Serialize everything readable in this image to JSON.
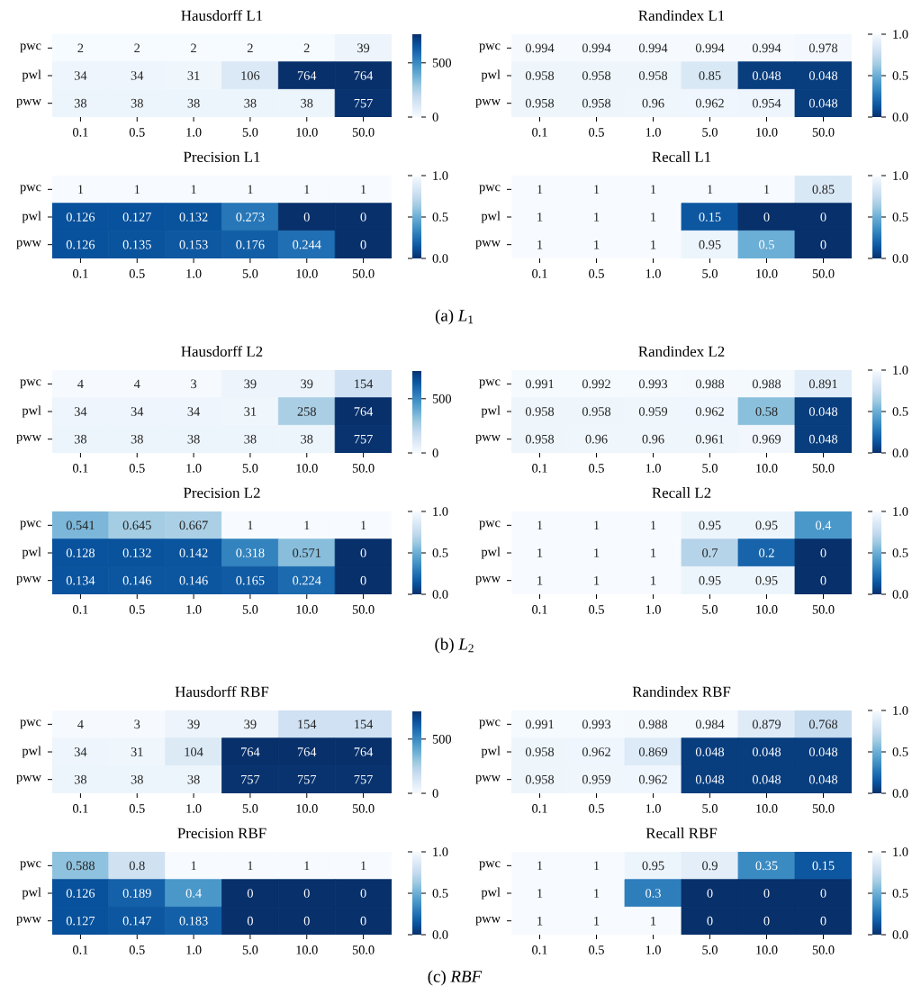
{
  "chart_data": [
    {
      "type": "heatmap",
      "title": "Hausdorff L1",
      "categories": [
        "0.1",
        "0.5",
        "1.0",
        "5.0",
        "10.0",
        "50.0"
      ],
      "y_categories": [
        "pwc",
        "pwl",
        "pww"
      ],
      "cells": [
        [
          2,
          2,
          2,
          2,
          2,
          39
        ],
        [
          34,
          34,
          31,
          106,
          764,
          764
        ],
        [
          38,
          38,
          38,
          38,
          38,
          757
        ]
      ],
      "cell_labels": [
        [
          "2",
          "2",
          "2",
          "2",
          "2",
          "39"
        ],
        [
          "34",
          "34",
          "31",
          "106",
          "764",
          "764"
        ],
        [
          "38",
          "38",
          "38",
          "38",
          "38",
          "757"
        ]
      ],
      "clim": [
        0,
        764
      ],
      "cticks": [
        0,
        500
      ]
    },
    {
      "type": "heatmap",
      "title": "Randindex L1",
      "categories": [
        "0.1",
        "0.5",
        "1.0",
        "5.0",
        "10.0",
        "50.0"
      ],
      "y_categories": [
        "pwc",
        "pwl",
        "pww"
      ],
      "cells": [
        [
          0.994,
          0.994,
          0.994,
          0.994,
          0.994,
          0.978
        ],
        [
          0.958,
          0.958,
          0.958,
          0.85,
          0.048,
          0.048
        ],
        [
          0.958,
          0.958,
          0.96,
          0.962,
          0.954,
          0.048
        ]
      ],
      "cell_labels": [
        [
          "0.994",
          "0.994",
          "0.994",
          "0.994",
          "0.994",
          "0.978"
        ],
        [
          "0.958",
          "0.958",
          "0.958",
          "0.85",
          "0.048",
          "0.048"
        ],
        [
          "0.958",
          "0.958",
          "0.96",
          "0.962",
          "0.954",
          "0.048"
        ]
      ],
      "clim": [
        1.0,
        0.0
      ],
      "cticks": [
        {
          "value": 0,
          "label": "0.0"
        },
        {
          "value": 0.5,
          "label": "0.5"
        },
        {
          "value": 1,
          "label": "1.0"
        }
      ]
    },
    {
      "type": "heatmap",
      "title": "Precision L1",
      "categories": [
        "0.1",
        "0.5",
        "1.0",
        "5.0",
        "10.0",
        "50.0"
      ],
      "y_categories": [
        "pwc",
        "pwl",
        "pww"
      ],
      "cells": [
        [
          1,
          1,
          1,
          1,
          1,
          1
        ],
        [
          0.126,
          0.127,
          0.132,
          0.273,
          0,
          0
        ],
        [
          0.126,
          0.135,
          0.153,
          0.176,
          0.244,
          0
        ]
      ],
      "cell_labels": [
        [
          "1",
          "1",
          "1",
          "1",
          "1",
          "1"
        ],
        [
          "0.126",
          "0.127",
          "0.132",
          "0.273",
          "0",
          "0"
        ],
        [
          "0.126",
          "0.135",
          "0.153",
          "0.176",
          "0.244",
          "0"
        ]
      ],
      "clim": [
        1.0,
        0.0
      ],
      "cticks": [
        {
          "value": 0,
          "label": "0.0"
        },
        {
          "value": 0.5,
          "label": "0.5"
        },
        {
          "value": 1,
          "label": "1.0"
        }
      ],
      "annotations": [
        "(a) *L*$_{1}$"
      ]
    },
    {
      "type": "heatmap",
      "title": "Recall L1",
      "categories": [
        "0.1",
        "0.5",
        "1.0",
        "5.0",
        "10.0",
        "50.0"
      ],
      "y_categories": [
        "pwc",
        "pwl",
        "pww"
      ],
      "cells": [
        [
          1,
          1,
          1,
          1,
          1,
          0.85
        ],
        [
          1,
          1,
          1,
          0.15,
          0,
          0
        ],
        [
          1,
          1,
          1,
          0.95,
          0.5,
          0
        ]
      ],
      "cell_labels": [
        [
          "1",
          "1",
          "1",
          "1",
          "1",
          "0.85"
        ],
        [
          "1",
          "1",
          "1",
          "0.15",
          "0",
          "0"
        ],
        [
          "1",
          "1",
          "1",
          "0.95",
          "0.5",
          "0"
        ]
      ],
      "clim": [
        1.0,
        0.0
      ],
      "cticks": [
        {
          "value": 0,
          "label": "0.0"
        },
        {
          "value": 0.5,
          "label": "0.5"
        },
        {
          "value": 1,
          "label": "1.0"
        }
      ]
    },
    {
      "type": "heatmap",
      "title": "Hausdorff L2",
      "categories": [
        "0.1",
        "0.5",
        "1.0",
        "5.0",
        "10.0",
        "50.0"
      ],
      "y_categories": [
        "pwc",
        "pwl",
        "pww"
      ],
      "cells": [
        [
          4,
          4,
          3,
          39,
          39,
          154
        ],
        [
          34,
          34,
          34,
          31,
          258,
          764
        ],
        [
          38,
          38,
          38,
          38,
          38,
          757
        ]
      ],
      "cell_labels": [
        [
          "4",
          "4",
          "3",
          "39",
          "39",
          "154"
        ],
        [
          "34",
          "34",
          "34",
          "31",
          "258",
          "764"
        ],
        [
          "38",
          "38",
          "38",
          "38",
          "38",
          "757"
        ]
      ],
      "clim": [
        0,
        764
      ],
      "cticks": [
        0,
        500
      ]
    },
    {
      "type": "heatmap",
      "title": "Randindex L2",
      "categories": [
        "0.1",
        "0.5",
        "1.0",
        "5.0",
        "10.0",
        "50.0"
      ],
      "y_categories": [
        "pwc",
        "pwl",
        "pww"
      ],
      "cells": [
        [
          0.991,
          0.992,
          0.993,
          0.988,
          0.988,
          0.891
        ],
        [
          0.958,
          0.958,
          0.959,
          0.962,
          0.58,
          0.048
        ],
        [
          0.958,
          0.96,
          0.96,
          0.961,
          0.969,
          0.048
        ]
      ],
      "cell_labels": [
        [
          "0.991",
          "0.992",
          "0.993",
          "0.988",
          "0.988",
          "0.891"
        ],
        [
          "0.958",
          "0.958",
          "0.959",
          "0.962",
          "0.58",
          "0.048"
        ],
        [
          "0.958",
          "0.96",
          "0.96",
          "0.961",
          "0.969",
          "0.048"
        ]
      ],
      "clim": [
        1.0,
        0.0
      ],
      "cticks": [
        {
          "value": 0,
          "label": "0.0"
        },
        {
          "value": 0.5,
          "label": "0.5"
        },
        {
          "value": 1,
          "label": "1.0"
        }
      ]
    },
    {
      "type": "heatmap",
      "title": "Precision L2",
      "categories": [
        "0.1",
        "0.5",
        "1.0",
        "5.0",
        "10.0",
        "50.0"
      ],
      "y_categories": [
        "pwc",
        "pwl",
        "pww"
      ],
      "cells": [
        [
          0.541,
          0.645,
          0.667,
          1,
          1,
          1
        ],
        [
          0.128,
          0.132,
          0.142,
          0.318,
          0.571,
          0
        ],
        [
          0.134,
          0.146,
          0.146,
          0.165,
          0.224,
          0
        ]
      ],
      "cell_labels": [
        [
          "0.541",
          "0.645",
          "0.667",
          "1",
          "1",
          "1"
        ],
        [
          "0.128",
          "0.132",
          "0.142",
          "0.318",
          "0.571",
          "0"
        ],
        [
          "0.134",
          "0.146",
          "0.146",
          "0.165",
          "0.224",
          "0"
        ]
      ],
      "clim": [
        1.0,
        0.0
      ],
      "cticks": [
        {
          "value": 0,
          "label": "0.0"
        },
        {
          "value": 0.5,
          "label": "0.5"
        },
        {
          "value": 1,
          "label": "1.0"
        }
      ],
      "annotations": [
        "(b) *L*$_{2}$"
      ]
    },
    {
      "type": "heatmap",
      "title": "Recall L2",
      "categories": [
        "0.1",
        "0.5",
        "1.0",
        "5.0",
        "10.0",
        "50.0"
      ],
      "y_categories": [
        "pwc",
        "pwl",
        "pww"
      ],
      "cells": [
        [
          1,
          1,
          1,
          0.95,
          0.95,
          0.4
        ],
        [
          1,
          1,
          1,
          0.7,
          0.2,
          0
        ],
        [
          1,
          1,
          1,
          0.95,
          0.95,
          0
        ]
      ],
      "cell_labels": [
        [
          "1",
          "1",
          "1",
          "0.95",
          "0.95",
          "0.4"
        ],
        [
          "1",
          "1",
          "1",
          "0.7",
          "0.2",
          "0"
        ],
        [
          "1",
          "1",
          "1",
          "0.95",
          "0.95",
          "0"
        ]
      ],
      "clim": [
        1.0,
        0.0
      ],
      "cticks": [
        {
          "value": 0,
          "label": "0.0"
        },
        {
          "value": 0.5,
          "label": "0.5"
        },
        {
          "value": 1,
          "label": "1.0"
        }
      ]
    },
    {
      "type": "heatmap",
      "title": "Hausdorff RBF",
      "categories": [
        "0.1",
        "0.5",
        "1.0",
        "5.0",
        "10.0",
        "50.0"
      ],
      "y_categories": [
        "pwc",
        "pwl",
        "pww"
      ],
      "cells": [
        [
          4,
          3,
          39,
          39,
          154,
          154
        ],
        [
          34,
          31,
          104,
          764,
          764,
          764
        ],
        [
          38,
          38,
          38,
          757,
          757,
          757
        ]
      ],
      "cell_labels": [
        [
          "4",
          "3",
          "39",
          "39",
          "154",
          "154"
        ],
        [
          "34",
          "31",
          "104",
          "764",
          "764",
          "764"
        ],
        [
          "38",
          "38",
          "38",
          "757",
          "757",
          "757"
        ]
      ],
      "clim": [
        0,
        764
      ],
      "cticks": [
        0,
        500
      ]
    },
    {
      "type": "heatmap",
      "title": "Randindex RBF",
      "categories": [
        "0.1",
        "0.5",
        "1.0",
        "5.0",
        "10.0",
        "50.0"
      ],
      "y_categories": [
        "pwc",
        "pwl",
        "pww"
      ],
      "cells": [
        [
          0.991,
          0.993,
          0.988,
          0.984,
          0.879,
          0.768
        ],
        [
          0.958,
          0.962,
          0.869,
          0.048,
          0.048,
          0.048
        ],
        [
          0.958,
          0.959,
          0.962,
          0.048,
          0.048,
          0.048
        ]
      ],
      "cell_labels": [
        [
          "0.991",
          "0.993",
          "0.988",
          "0.984",
          "0.879",
          "0.768"
        ],
        [
          "0.958",
          "0.962",
          "0.869",
          "0.048",
          "0.048",
          "0.048"
        ],
        [
          "0.958",
          "0.959",
          "0.962",
          "0.048",
          "0.048",
          "0.048"
        ]
      ],
      "clim": [
        1.0,
        0.0
      ],
      "cticks": [
        {
          "value": 0,
          "label": "0.0"
        },
        {
          "value": 0.5,
          "label": "0.5"
        },
        {
          "value": 1,
          "label": "1.0"
        }
      ]
    },
    {
      "type": "heatmap",
      "title": "Precision RBF",
      "categories": [
        "0.1",
        "0.5",
        "1.0",
        "5.0",
        "10.0",
        "50.0"
      ],
      "y_categories": [
        "pwc",
        "pwl",
        "pww"
      ],
      "cells": [
        [
          0.588,
          0.8,
          1,
          1,
          1,
          1
        ],
        [
          0.126,
          0.189,
          0.4,
          0,
          0,
          0
        ],
        [
          0.127,
          0.147,
          0.183,
          0,
          0,
          0
        ]
      ],
      "cell_labels": [
        [
          "0.588",
          "0.8",
          "1",
          "1",
          "1",
          "1"
        ],
        [
          "0.126",
          "0.189",
          "0.4",
          "0",
          "0",
          "0"
        ],
        [
          "0.127",
          "0.147",
          "0.183",
          "0",
          "0",
          "0"
        ]
      ],
      "clim": [
        1.0,
        0.0
      ],
      "cticks": [
        {
          "value": 0,
          "label": "0.0"
        },
        {
          "value": 0.5,
          "label": "0.5"
        },
        {
          "value": 1,
          "label": "1.0"
        }
      ],
      "annotations": [
        "(c) *RBF*"
      ]
    },
    {
      "type": "heatmap",
      "title": "Recall RBF",
      "categories": [
        "0.1",
        "0.5",
        "1.0",
        "5.0",
        "10.0",
        "50.0"
      ],
      "y_categories": [
        "pwc",
        "pwl",
        "pww"
      ],
      "cells": [
        [
          1,
          1,
          0.95,
          0.9,
          0.35,
          0.15
        ],
        [
          1,
          1,
          0.3,
          0,
          0,
          0
        ],
        [
          1,
          1,
          1,
          0,
          0,
          0
        ]
      ],
      "cell_labels": [
        [
          "1",
          "1",
          "0.95",
          "0.9",
          "0.35",
          "0.15"
        ],
        [
          "1",
          "1",
          "0.3",
          "0",
          "0",
          "0"
        ],
        [
          "1",
          "1",
          "1",
          "0",
          "0",
          "0"
        ]
      ],
      "clim": [
        1.0,
        0.0
      ],
      "cticks": [
        {
          "value": 0,
          "label": "0.0"
        },
        {
          "value": 0.5,
          "label": "0.5"
        },
        {
          "value": 1,
          "label": "1.0"
        }
      ]
    }
  ]
}
